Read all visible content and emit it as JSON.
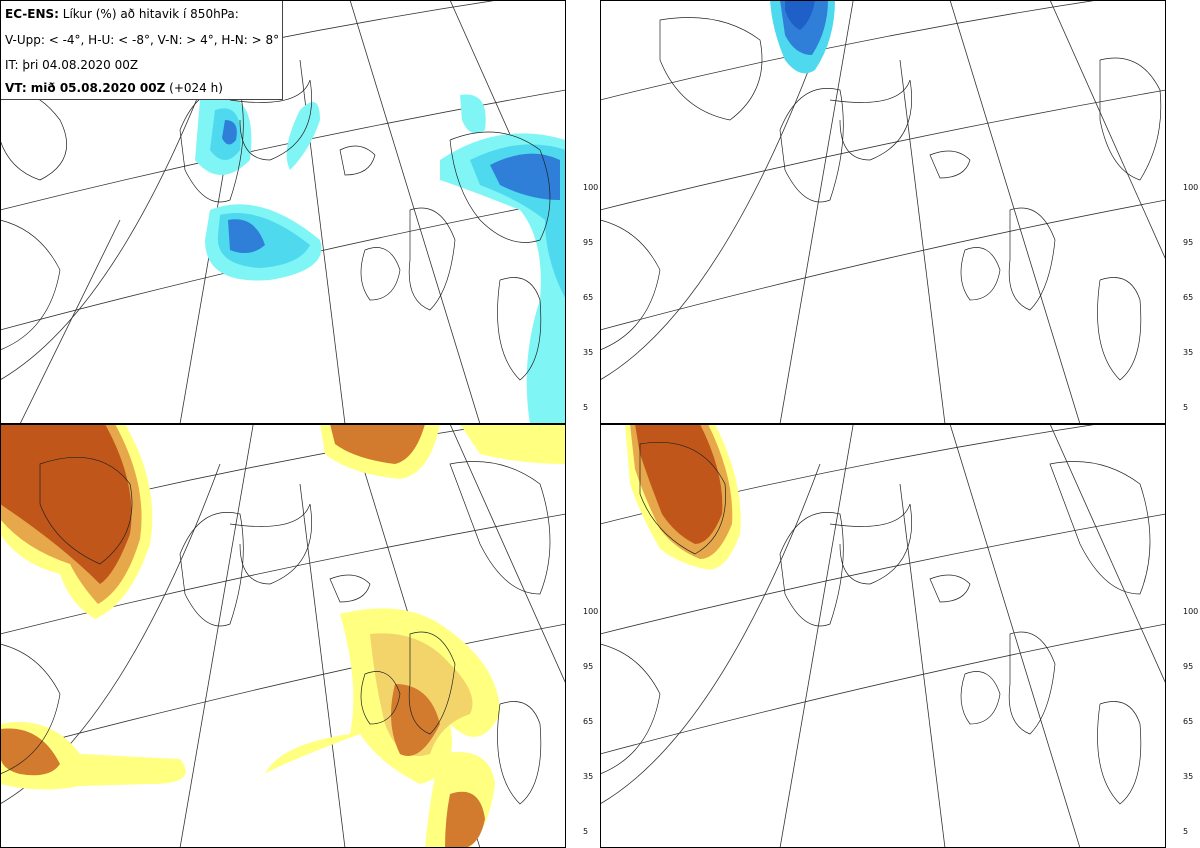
{
  "header": {
    "model_label": "EC-ENS:",
    "title_text": "Líkur (%) að hitavik í 850hPa:",
    "thresholds": "V-Upp: < -4°, H-U: < -8°, V-N: > 4°, H-N: > 8°",
    "initial_time": "IT: þri 04.08.2020 00Z",
    "valid_prefix": "VT: mið 05.08.2020 00Z",
    "valid_offset": "(+024 h)"
  },
  "colorbar_ticks": [
    "100",
    "95",
    "65",
    "35",
    "5"
  ],
  "cold_colors": [
    "#7ff5f5",
    "#4ed9ee",
    "#3aa8e6",
    "#2f7ed8",
    "#1e5fc8"
  ],
  "warm_colors": [
    "#ffff80",
    "#f3d46a",
    "#e6a84a",
    "#d27a2e",
    "#c0561a"
  ],
  "panels": [
    {
      "key": "V-Upp",
      "scale": "cold"
    },
    {
      "key": "H-U",
      "scale": "cold"
    },
    {
      "key": "V-N",
      "scale": "warm"
    },
    {
      "key": "H-N",
      "scale": "warm"
    }
  ]
}
